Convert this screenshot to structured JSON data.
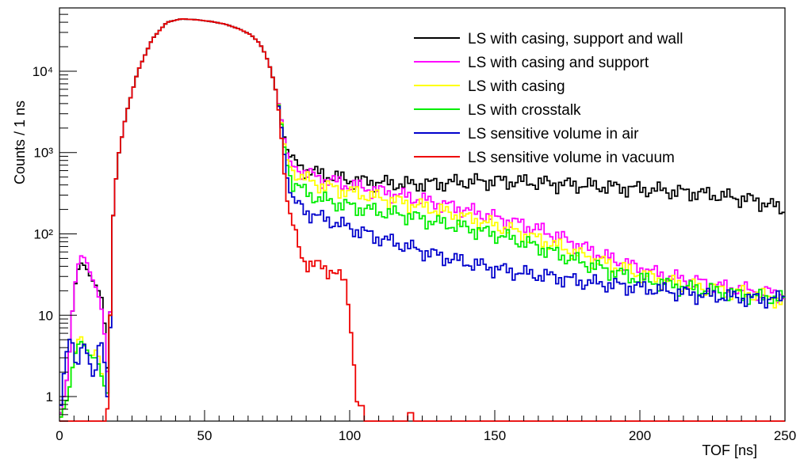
{
  "chart_data": {
    "type": "line",
    "xlabel": "TOF [ns]",
    "ylabel": "Counts / 1 ns",
    "xlim": [
      0,
      250
    ],
    "ylim": [
      0.5,
      60000
    ],
    "yscale": "log",
    "grid": false,
    "legend_position": "top-right",
    "x_ticks": [
      0,
      50,
      100,
      150,
      200,
      250
    ],
    "x_tick_labels": [
      "0",
      "50",
      "100",
      "150",
      "200",
      "250"
    ],
    "y_ticks": [
      1,
      10,
      100,
      1000,
      10000
    ],
    "y_tick_labels": [
      "1",
      "10",
      "10²",
      "10³",
      "10⁴"
    ],
    "series": [
      {
        "name": "LS with casing, support and wall",
        "color": "#000000",
        "points": [
          [
            0,
            0.5
          ],
          [
            3,
            2
          ],
          [
            5,
            20
          ],
          [
            7,
            45
          ],
          [
            9,
            40
          ],
          [
            11,
            28
          ],
          [
            13,
            22
          ],
          [
            15,
            15
          ],
          [
            17,
            1.2
          ],
          [
            18,
            100
          ],
          [
            20,
            800
          ],
          [
            23,
            3000
          ],
          [
            27,
            10000
          ],
          [
            32,
            25000
          ],
          [
            37,
            40000
          ],
          [
            42,
            44000
          ],
          [
            47,
            43000
          ],
          [
            52,
            41000
          ],
          [
            57,
            38000
          ],
          [
            62,
            33000
          ],
          [
            66,
            28000
          ],
          [
            69,
            22000
          ],
          [
            71,
            16000
          ],
          [
            73,
            10000
          ],
          [
            75,
            5000
          ],
          [
            77,
            2000
          ],
          [
            78,
            1200
          ],
          [
            80,
            800
          ],
          [
            83,
            680
          ],
          [
            86,
            600
          ],
          [
            90,
            550
          ],
          [
            95,
            500
          ],
          [
            100,
            460
          ],
          [
            110,
            430
          ],
          [
            120,
            410
          ],
          [
            130,
            420
          ],
          [
            140,
            440
          ],
          [
            150,
            450
          ],
          [
            160,
            440
          ],
          [
            170,
            420
          ],
          [
            180,
            400
          ],
          [
            190,
            380
          ],
          [
            200,
            360
          ],
          [
            210,
            340
          ],
          [
            220,
            320
          ],
          [
            230,
            290
          ],
          [
            240,
            260
          ],
          [
            250,
            200
          ]
        ]
      },
      {
        "name": "LS with casing and support",
        "color": "#ff00ff",
        "points": [
          [
            0,
            0.5
          ],
          [
            3,
            2
          ],
          [
            5,
            20
          ],
          [
            7,
            55
          ],
          [
            9,
            50
          ],
          [
            11,
            30
          ],
          [
            13,
            20
          ],
          [
            15,
            10
          ],
          [
            17,
            1.2
          ],
          [
            18,
            100
          ],
          [
            20,
            800
          ],
          [
            23,
            3000
          ],
          [
            27,
            10000
          ],
          [
            32,
            25000
          ],
          [
            37,
            40000
          ],
          [
            42,
            44000
          ],
          [
            47,
            43000
          ],
          [
            52,
            41000
          ],
          [
            57,
            38000
          ],
          [
            62,
            33000
          ],
          [
            66,
            28000
          ],
          [
            69,
            22000
          ],
          [
            71,
            16000
          ],
          [
            73,
            10000
          ],
          [
            75,
            5000
          ],
          [
            77,
            2000
          ],
          [
            78,
            1100
          ],
          [
            80,
            700
          ],
          [
            85,
            560
          ],
          [
            90,
            480
          ],
          [
            100,
            400
          ],
          [
            110,
            340
          ],
          [
            120,
            290
          ],
          [
            130,
            240
          ],
          [
            140,
            200
          ],
          [
            150,
            160
          ],
          [
            160,
            130
          ],
          [
            170,
            100
          ],
          [
            180,
            70
          ],
          [
            190,
            50
          ],
          [
            200,
            38
          ],
          [
            210,
            30
          ],
          [
            220,
            26
          ],
          [
            230,
            22
          ],
          [
            240,
            20
          ],
          [
            250,
            18
          ]
        ]
      },
      {
        "name": "LS with casing",
        "color": "#ffff00",
        "points": [
          [
            0,
            0.5
          ],
          [
            3,
            1
          ],
          [
            5,
            3
          ],
          [
            7,
            6
          ],
          [
            9,
            4
          ],
          [
            11,
            3
          ],
          [
            13,
            4
          ],
          [
            15,
            1.5
          ],
          [
            17,
            1
          ],
          [
            18,
            100
          ],
          [
            20,
            800
          ],
          [
            23,
            3000
          ],
          [
            27,
            10000
          ],
          [
            32,
            25000
          ],
          [
            37,
            40000
          ],
          [
            42,
            44000
          ],
          [
            47,
            43000
          ],
          [
            52,
            41000
          ],
          [
            57,
            38000
          ],
          [
            62,
            33000
          ],
          [
            66,
            28000
          ],
          [
            69,
            22000
          ],
          [
            71,
            16000
          ],
          [
            73,
            10000
          ],
          [
            75,
            5000
          ],
          [
            77,
            1800
          ],
          [
            78,
            900
          ],
          [
            80,
            600
          ],
          [
            85,
            470
          ],
          [
            90,
            400
          ],
          [
            100,
            330
          ],
          [
            110,
            280
          ],
          [
            120,
            240
          ],
          [
            130,
            200
          ],
          [
            140,
            160
          ],
          [
            150,
            130
          ],
          [
            160,
            100
          ],
          [
            170,
            75
          ],
          [
            180,
            55
          ],
          [
            190,
            42
          ],
          [
            200,
            32
          ],
          [
            210,
            26
          ],
          [
            220,
            22
          ],
          [
            230,
            20
          ],
          [
            240,
            18
          ],
          [
            250,
            15
          ]
        ]
      },
      {
        "name": "LS with crosstalk",
        "color": "#00ee00",
        "points": [
          [
            0,
            0.5
          ],
          [
            3,
            1
          ],
          [
            5,
            3
          ],
          [
            7,
            5
          ],
          [
            9,
            4
          ],
          [
            11,
            3
          ],
          [
            13,
            3
          ],
          [
            15,
            1.5
          ],
          [
            17,
            1
          ],
          [
            18,
            100
          ],
          [
            20,
            800
          ],
          [
            23,
            3000
          ],
          [
            27,
            10000
          ],
          [
            32,
            25000
          ],
          [
            37,
            40000
          ],
          [
            42,
            44000
          ],
          [
            47,
            43000
          ],
          [
            52,
            41000
          ],
          [
            57,
            38000
          ],
          [
            62,
            33000
          ],
          [
            66,
            28000
          ],
          [
            69,
            22000
          ],
          [
            71,
            16000
          ],
          [
            73,
            10000
          ],
          [
            75,
            5000
          ],
          [
            77,
            1700
          ],
          [
            78,
            800
          ],
          [
            80,
            450
          ],
          [
            85,
            320
          ],
          [
            90,
            270
          ],
          [
            100,
            220
          ],
          [
            110,
            190
          ],
          [
            120,
            170
          ],
          [
            130,
            140
          ],
          [
            140,
            120
          ],
          [
            150,
            100
          ],
          [
            160,
            80
          ],
          [
            170,
            60
          ],
          [
            180,
            45
          ],
          [
            190,
            35
          ],
          [
            200,
            28
          ],
          [
            210,
            24
          ],
          [
            220,
            21
          ],
          [
            230,
            19
          ],
          [
            240,
            17
          ],
          [
            250,
            16
          ]
        ]
      },
      {
        "name": "LS sensitive volume in air",
        "color": "#0000cc",
        "points": [
          [
            0,
            0.5
          ],
          [
            2,
            3
          ],
          [
            4,
            6
          ],
          [
            6,
            2
          ],
          [
            8,
            5
          ],
          [
            10,
            3
          ],
          [
            12,
            1.5
          ],
          [
            14,
            6
          ],
          [
            16,
            2
          ],
          [
            17,
            0.5
          ],
          [
            18,
            100
          ],
          [
            20,
            800
          ],
          [
            23,
            3000
          ],
          [
            27,
            10000
          ],
          [
            32,
            25000
          ],
          [
            37,
            40000
          ],
          [
            42,
            44000
          ],
          [
            47,
            43000
          ],
          [
            52,
            41000
          ],
          [
            57,
            38000
          ],
          [
            62,
            33000
          ],
          [
            66,
            28000
          ],
          [
            69,
            22000
          ],
          [
            71,
            16000
          ],
          [
            73,
            10000
          ],
          [
            75,
            5000
          ],
          [
            77,
            1500
          ],
          [
            78,
            600
          ],
          [
            80,
            260
          ],
          [
            85,
            190
          ],
          [
            90,
            160
          ],
          [
            100,
            120
          ],
          [
            110,
            90
          ],
          [
            120,
            70
          ],
          [
            130,
            55
          ],
          [
            140,
            45
          ],
          [
            150,
            38
          ],
          [
            160,
            33
          ],
          [
            170,
            30
          ],
          [
            180,
            26
          ],
          [
            190,
            24
          ],
          [
            200,
            22
          ],
          [
            210,
            20
          ],
          [
            220,
            18
          ],
          [
            230,
            17
          ],
          [
            240,
            16
          ],
          [
            250,
            16
          ]
        ]
      },
      {
        "name": "LS sensitive volume in vacuum",
        "color": "#ee0000",
        "points": [
          [
            0,
            0.5
          ],
          [
            16,
            0.5
          ],
          [
            17,
            1
          ],
          [
            18,
            100
          ],
          [
            20,
            800
          ],
          [
            23,
            3000
          ],
          [
            27,
            10000
          ],
          [
            32,
            25000
          ],
          [
            37,
            40000
          ],
          [
            42,
            44000
          ],
          [
            47,
            43000
          ],
          [
            52,
            41000
          ],
          [
            57,
            38000
          ],
          [
            62,
            33000
          ],
          [
            66,
            28000
          ],
          [
            69,
            22000
          ],
          [
            71,
            16000
          ],
          [
            73,
            10000
          ],
          [
            75,
            5000
          ],
          [
            77,
            1000
          ],
          [
            78,
            300
          ],
          [
            80,
            150
          ],
          [
            82,
            80
          ],
          [
            84,
            50
          ],
          [
            86,
            42
          ],
          [
            88,
            40
          ],
          [
            90,
            42
          ],
          [
            92,
            38
          ],
          [
            94,
            35
          ],
          [
            96,
            30
          ],
          [
            98,
            28
          ],
          [
            99,
            22
          ],
          [
            100,
            12
          ],
          [
            101,
            4
          ],
          [
            102,
            1.5
          ],
          [
            103,
            0.5
          ],
          [
            104,
            1.2
          ],
          [
            105,
            0.5
          ],
          [
            120,
            0.5
          ],
          [
            121,
            0.8
          ],
          [
            122,
            0.5
          ]
        ]
      }
    ]
  }
}
